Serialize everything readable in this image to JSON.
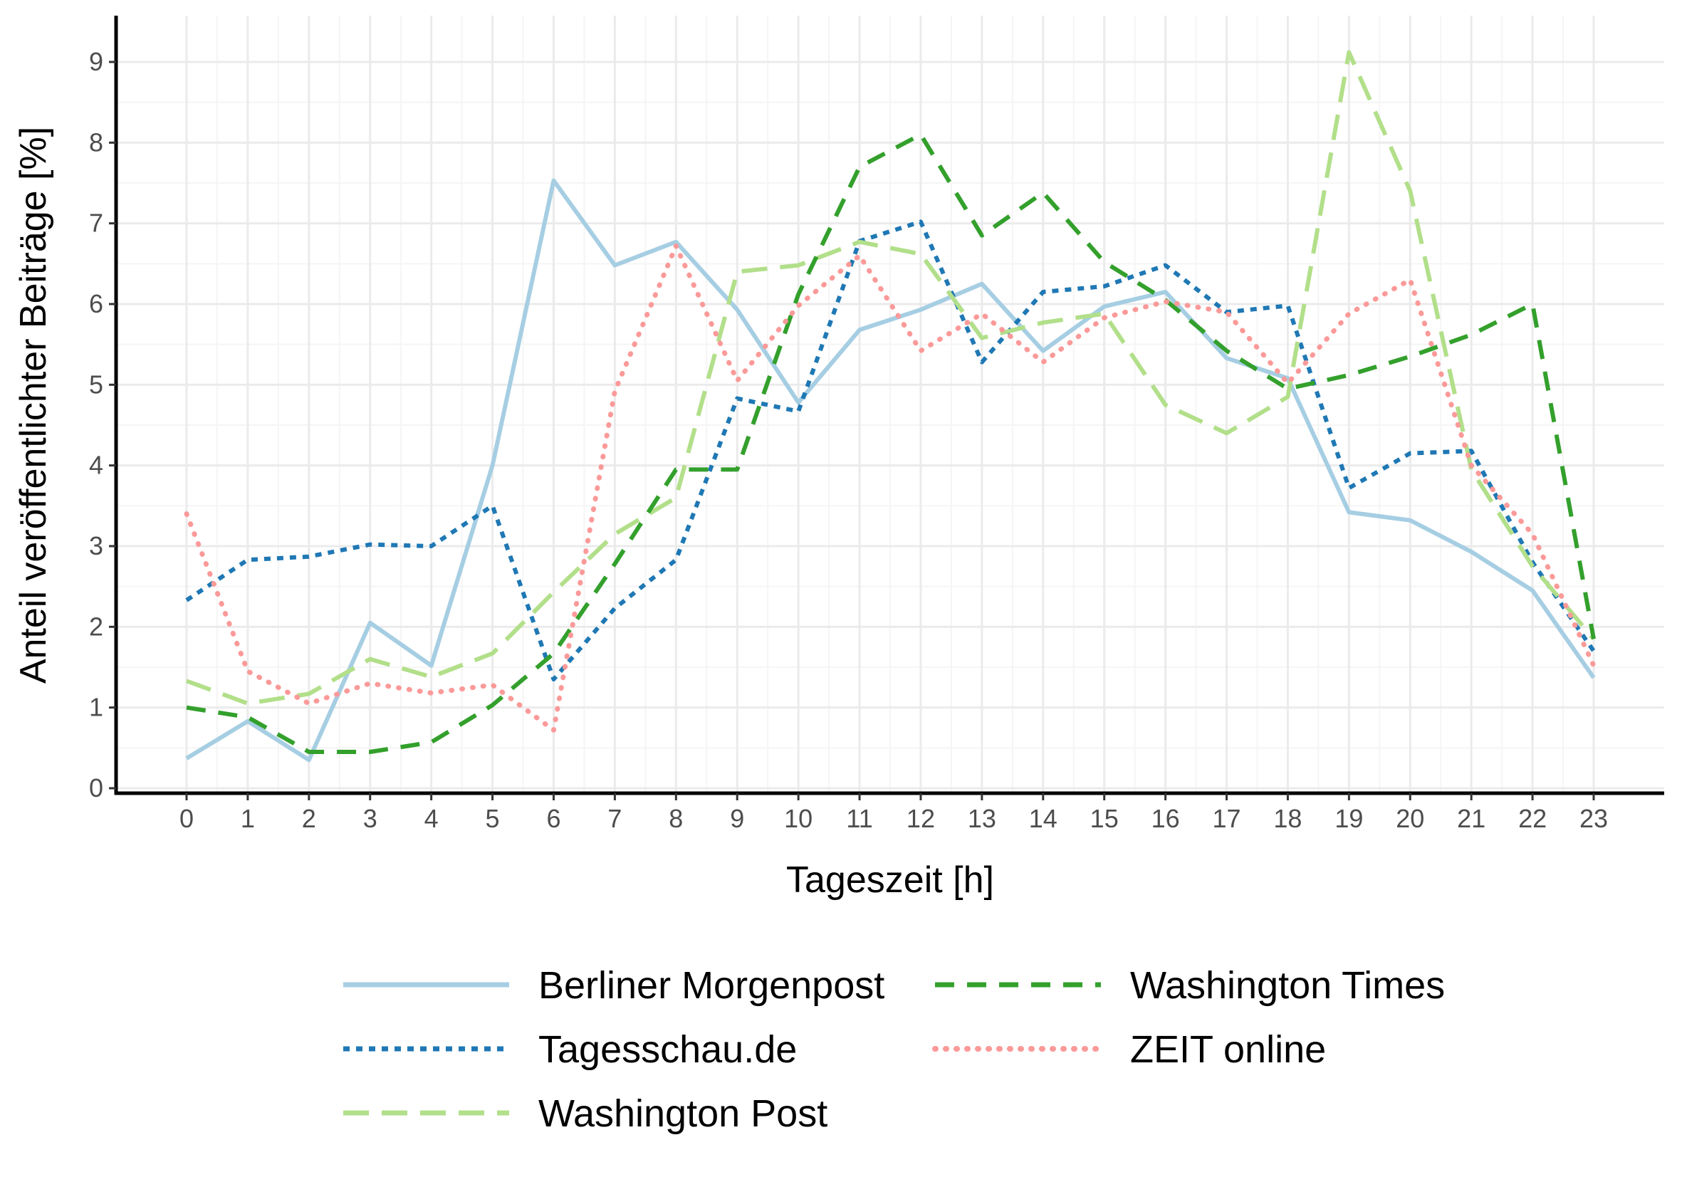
{
  "chart_data": {
    "type": "line",
    "title": "",
    "xlabel": "Tageszeit [h]",
    "ylabel": "Anteil veröffentlichter Beiträge [%]",
    "x": [
      0,
      1,
      2,
      3,
      4,
      5,
      6,
      7,
      8,
      9,
      10,
      11,
      12,
      13,
      14,
      15,
      16,
      17,
      18,
      19,
      20,
      21,
      22,
      23
    ],
    "xticks": [
      "0",
      "1",
      "2",
      "3",
      "4",
      "5",
      "6",
      "7",
      "8",
      "9",
      "10",
      "11",
      "12",
      "13",
      "14",
      "15",
      "16",
      "17",
      "18",
      "19",
      "20",
      "21",
      "22",
      "23"
    ],
    "yticks": [
      "0",
      "1",
      "2",
      "3",
      "4",
      "5",
      "6",
      "7",
      "8",
      "9"
    ],
    "ylim": [
      0,
      9.3
    ],
    "grid": true,
    "legend_position": "bottom",
    "series": [
      {
        "name": "Berliner Morgenpost",
        "color": "#A6CEE3",
        "style": "solid",
        "values": [
          0.37,
          0.83,
          0.35,
          2.05,
          1.52,
          4.0,
          7.53,
          6.48,
          6.77,
          5.93,
          4.78,
          5.68,
          5.93,
          6.25,
          5.42,
          5.97,
          6.15,
          5.33,
          5.08,
          3.42,
          3.32,
          2.93,
          2.45,
          1.37
        ]
      },
      {
        "name": "Tagesschau.de",
        "color": "#1F78B4",
        "style": "dotted",
        "values": [
          2.33,
          2.83,
          2.87,
          3.02,
          3.0,
          3.5,
          1.35,
          2.23,
          2.83,
          4.83,
          4.67,
          6.78,
          7.02,
          5.28,
          6.15,
          6.22,
          6.48,
          5.9,
          5.98,
          3.72,
          4.15,
          4.18,
          2.8,
          1.7
        ]
      },
      {
        "name": "Washington Post",
        "color": "#B2DF8A",
        "style": "longdash",
        "values": [
          1.33,
          1.05,
          1.17,
          1.6,
          1.38,
          1.67,
          2.43,
          3.15,
          3.6,
          6.4,
          6.48,
          6.77,
          6.62,
          5.58,
          5.77,
          5.88,
          4.75,
          4.4,
          4.85,
          9.12,
          7.4,
          3.95,
          2.75,
          1.85
        ]
      },
      {
        "name": "Washington Times",
        "color": "#33A02C",
        "style": "dashed",
        "values": [
          1.0,
          0.88,
          0.45,
          0.45,
          0.57,
          1.03,
          1.67,
          2.78,
          3.95,
          3.95,
          6.12,
          7.7,
          8.1,
          6.85,
          7.38,
          6.52,
          6.05,
          5.42,
          4.95,
          5.12,
          5.35,
          5.62,
          6.0,
          1.85
        ]
      },
      {
        "name": "ZEIT online",
        "color": "#FB9A99",
        "style": "dots",
        "values": [
          3.4,
          1.45,
          1.05,
          1.3,
          1.18,
          1.28,
          0.72,
          4.92,
          6.72,
          5.05,
          5.98,
          6.6,
          5.42,
          5.88,
          5.28,
          5.83,
          6.03,
          5.9,
          5.02,
          5.88,
          6.3,
          4.0,
          3.15,
          1.52
        ]
      }
    ]
  }
}
